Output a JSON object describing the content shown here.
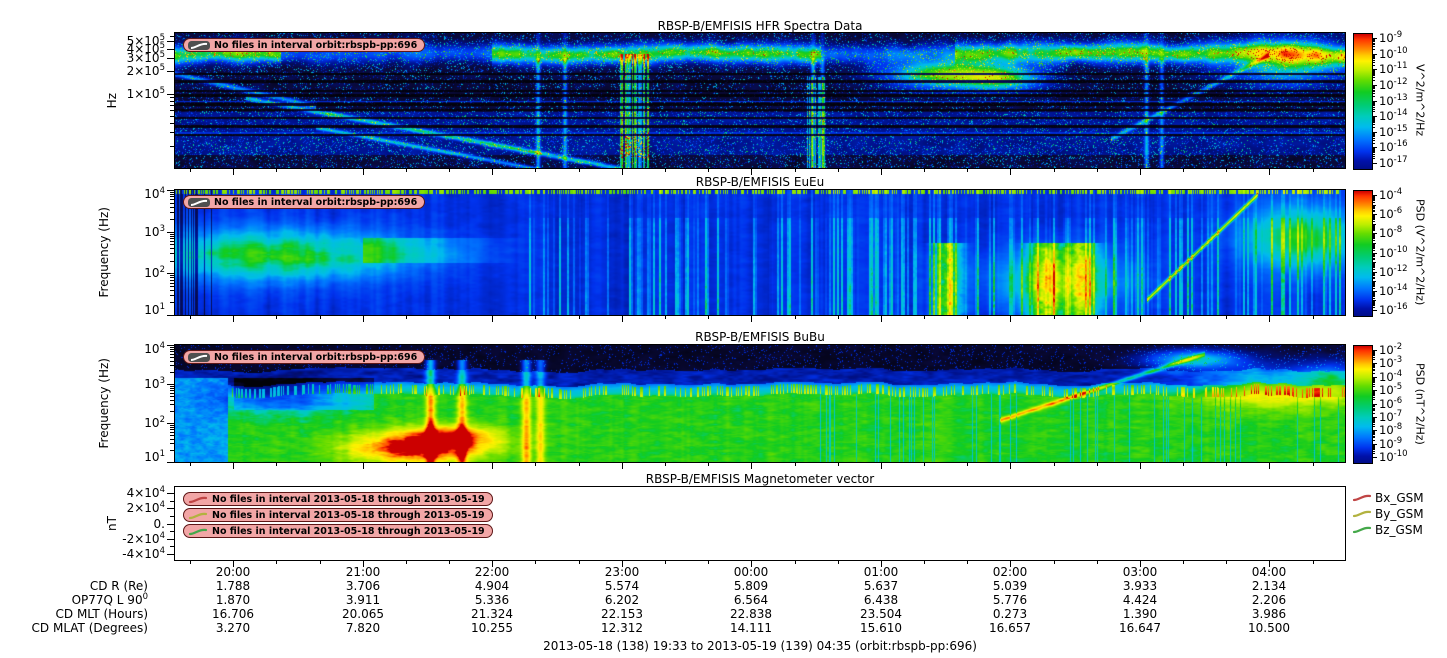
{
  "caption": "2013-05-18 (138) 19:33 to 2013-05-19 (139) 04:35 (orbit:rbspb-pp:696)",
  "xaxis": {
    "start_label": "19:33",
    "end_label": "04:35",
    "total_min": 542,
    "ticks": [
      {
        "label": "20:00",
        "offset_min": 27
      },
      {
        "label": "21:00",
        "offset_min": 87
      },
      {
        "label": "22:00",
        "offset_min": 147
      },
      {
        "label": "23:00",
        "offset_min": 207
      },
      {
        "label": "00:00",
        "offset_min": 267
      },
      {
        "label": "01:00",
        "offset_min": 327
      },
      {
        "label": "02:00",
        "offset_min": 387
      },
      {
        "label": "03:00",
        "offset_min": 447
      },
      {
        "label": "04:00",
        "offset_min": 507
      }
    ]
  },
  "context_table": {
    "rows": [
      {
        "label": "CD R (Re)",
        "label_sup": "",
        "values": [
          "1.788",
          "3.706",
          "4.904",
          "5.574",
          "5.809",
          "5.637",
          "5.039",
          "3.933",
          "2.134"
        ]
      },
      {
        "label": "OP77Q L 90",
        "label_sup": "0",
        "values": [
          "1.870",
          "3.911",
          "5.336",
          "6.202",
          "6.564",
          "6.438",
          "5.776",
          "4.424",
          "2.206"
        ]
      },
      {
        "label": "CD MLT (Hours)",
        "label_sup": "",
        "values": [
          "16.706",
          "20.065",
          "21.324",
          "22.153",
          "22.838",
          "23.504",
          "0.273",
          "1.390",
          "3.986"
        ]
      },
      {
        "label": "CD MLAT (Degrees)",
        "label_sup": "",
        "values": [
          "3.270",
          "7.820",
          "10.255",
          "12.312",
          "14.111",
          "15.610",
          "16.657",
          "16.647",
          "10.500"
        ]
      }
    ]
  },
  "chart_data": [
    {
      "type": "heatmap",
      "title": "RBSP-B/EMFISIS  HFR Spectra Data",
      "ylabel": "Hz",
      "xlabel": "",
      "yscale": "log",
      "ylim": [
        10000,
        650000
      ],
      "yticks": [
        {
          "text": "5×10",
          "sup": "5",
          "value": 500000
        },
        {
          "text": "4×10",
          "sup": "5",
          "value": 400000
        },
        {
          "text": "3×10",
          "sup": "5",
          "value": 300000
        },
        {
          "text": "2×10",
          "sup": "5",
          "value": 200000
        },
        {
          "text": "1×10",
          "sup": "5",
          "value": 100000
        }
      ],
      "annotations": [
        {
          "text": "No files in interval orbit:rbspb-pp:696",
          "marker_color": "#999999"
        }
      ],
      "colorbar": {
        "label": "V^2/m^2/Hz",
        "tick_base": "10",
        "tick_exponents": [
          "-9",
          "-10",
          "-11",
          "-12",
          "-13",
          "-14",
          "-15",
          "-16",
          "-17"
        ]
      }
    },
    {
      "type": "heatmap",
      "title": "RBSP-B/EMFISIS  EuEu",
      "ylabel": "Frequency (Hz)",
      "xlabel": "",
      "yscale": "log",
      "ylim": [
        10,
        10000
      ],
      "yticks": [
        {
          "text": "10",
          "sup": "4",
          "value": 10000
        },
        {
          "text": "10",
          "sup": "3",
          "value": 1000
        },
        {
          "text": "10",
          "sup": "2",
          "value": 100
        },
        {
          "text": "10",
          "sup": "1",
          "value": 10
        }
      ],
      "annotations": [
        {
          "text": "No files in interval orbit:rbspb-pp:696",
          "marker_color": "#999999"
        }
      ],
      "colorbar": {
        "label": "PSD (V^2/m^2/Hz)",
        "tick_base": "10",
        "tick_exponents": [
          "-4",
          "-6",
          "-8",
          "-10",
          "-12",
          "-14",
          "-16"
        ]
      }
    },
    {
      "type": "heatmap",
      "title": "RBSP-B/EMFISIS  BuBu",
      "ylabel": "Frequency (Hz)",
      "xlabel": "",
      "yscale": "log",
      "ylim": [
        10,
        10000
      ],
      "yticks": [
        {
          "text": "10",
          "sup": "4",
          "value": 10000
        },
        {
          "text": "10",
          "sup": "3",
          "value": 1000
        },
        {
          "text": "10",
          "sup": "2",
          "value": 100
        },
        {
          "text": "10",
          "sup": "1",
          "value": 10
        }
      ],
      "annotations": [
        {
          "text": "No files in interval orbit:rbspb-pp:696",
          "marker_color": "#999999"
        }
      ],
      "colorbar": {
        "label": "PSD (nT^2/Hz)",
        "tick_base": "10",
        "tick_exponents": [
          "-2",
          "-3",
          "-4",
          "-5",
          "-6",
          "-7",
          "-8",
          "-9",
          "-10"
        ]
      }
    },
    {
      "type": "line",
      "title": "RBSP-B/EMFISIS  Magnetometer vector",
      "ylabel": "nT",
      "xlabel": "",
      "yscale": "linear",
      "ylim": [
        -48000,
        48000
      ],
      "legend_position": "right-outside",
      "yticks": [
        {
          "text": "4×10",
          "sup": "4",
          "value": 40000
        },
        {
          "text": "2×10",
          "sup": "4",
          "value": 20000
        },
        {
          "text": "0.",
          "sup": "",
          "value": 0
        },
        {
          "text": "-2×10",
          "sup": "4",
          "value": -20000
        },
        {
          "text": "-4×10",
          "sup": "4",
          "value": -40000
        }
      ],
      "series": [
        {
          "name": "Bx_GSM",
          "color": "#c04545",
          "values": []
        },
        {
          "name": "By_GSM",
          "color": "#b2b23f",
          "values": []
        },
        {
          "name": "Bz_GSM",
          "color": "#44a84a",
          "values": []
        }
      ],
      "annotations": [
        {
          "text": "No files in interval 2013-05-18 through 2013-05-19",
          "marker_color": "#c04545"
        },
        {
          "text": "No files in interval 2013-05-18 through 2013-05-19",
          "marker_color": "#b2b23f"
        },
        {
          "text": "No files in interval 2013-05-18 through 2013-05-19",
          "marker_color": "#44a84a"
        }
      ]
    }
  ],
  "colors": {
    "badge_bg": "#f2a6a6",
    "badge_border": "#5c1616"
  }
}
